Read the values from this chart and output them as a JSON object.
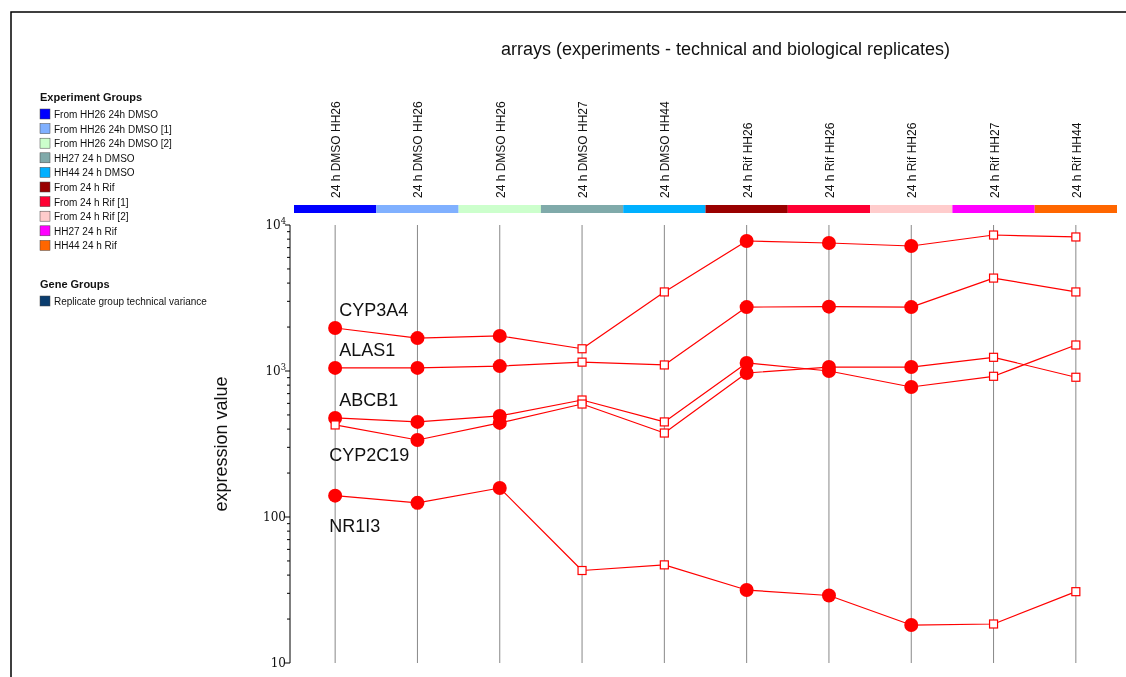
{
  "chart_data": {
    "type": "line",
    "xlabel": "arrays (experiments - technical and biological replicates)",
    "ylabel": "expression value",
    "annotations": [
      "Experiment Groups",
      "From HH26 24h DMSO",
      "From HH26 24h DMSO [1]",
      "From HH26 24h DMSO [2]",
      "HH27 24 h DMSO",
      "HH44 24 h DMSO",
      "From 24 h Rif",
      "From 24 h Rif [1]",
      "From 24 h Rif [2]",
      "HH27 24 h Rif",
      "HH44 24 h Rif",
      "Gene Groups",
      "Replicate group technical variance"
    ],
    "categories": [
      "24 h DMSO HH26",
      "24 h DMSO HH26",
      "24 h DMSO HH26",
      "24 h DMSO HH27",
      "24 h DMSO HH44",
      "24 h Rif HH26",
      "24 h Rif HH26",
      "24 h Rif HH26",
      "24 h Rif HH27",
      "24 h Rif HH44"
    ],
    "log": true,
    "grid": "x",
    "ylim": [
      10,
      10000
    ],
    "yticks": [
      {
        "value": 10,
        "label": "10"
      },
      {
        "value": 20,
        "label": null
      },
      {
        "value": 30,
        "label": null
      },
      {
        "value": 40,
        "label": null
      },
      {
        "value": 50,
        "label": null
      },
      {
        "value": 60,
        "label": null
      },
      {
        "value": 70,
        "label": null
      },
      {
        "value": 80,
        "label": null
      },
      {
        "value": 90,
        "label": null
      },
      {
        "value": 100,
        "label": "100"
      },
      {
        "value": 200,
        "label": null
      },
      {
        "value": 300,
        "label": null
      },
      {
        "value": 400,
        "label": null
      },
      {
        "value": 500,
        "label": null
      },
      {
        "value": 600,
        "label": null
      },
      {
        "value": 700,
        "label": null
      },
      {
        "value": 800,
        "label": null
      },
      {
        "value": 900,
        "label": null
      },
      {
        "value": 1000,
        "label": "10$^{3}$"
      },
      {
        "value": 2000,
        "label": null
      },
      {
        "value": 3000,
        "label": null
      },
      {
        "value": 4000,
        "label": null
      },
      {
        "value": 5000,
        "label": null
      },
      {
        "value": 6000,
        "label": null
      },
      {
        "value": 7000,
        "label": null
      },
      {
        "value": 8000,
        "label": null
      },
      {
        "value": 9000,
        "label": null
      },
      {
        "value": 10000,
        "label": "10$^{4}$"
      }
    ],
    "series": [
      {
        "name": "CYP3A4",
        "marker": "none",
        "color": "#ff0000",
        "values": [
          1970,
          1680,
          1740,
          1420,
          3480,
          7770,
          7530,
          7180,
          8540,
          8280
        ]
      },
      {
        "name": "ALAS1",
        "marker": "none",
        "color": "#ff0000",
        "values": [
          1050,
          1050,
          1080,
          1150,
          1100,
          2740,
          2760,
          2740,
          4330,
          3480
        ]
      },
      {
        "name": "ABCB1",
        "marker": "none",
        "color": "#ff0000",
        "values": [
          477,
          448,
          492,
          633,
          448,
          1135,
          1000,
          777,
          920,
          1507
        ]
      },
      {
        "name": "CYP2C19",
        "marker": "none",
        "color": "#ff0000",
        "values": [
          427,
          337,
          441,
          594,
          376,
          969,
          1064,
          1064,
          1241,
          906
        ]
      },
      {
        "name": "NR1I3",
        "marker": "none",
        "color": "#ff0000",
        "values": [
          140,
          125,
          158,
          43,
          47,
          31.6,
          29,
          18.2,
          18.5,
          30.8
        ]
      },
      {
        "type": "scatter",
        "marker": "circle",
        "color": "#ff0000",
        "values": [
          1970,
          1680,
          1740,
          null,
          null,
          7770,
          7530,
          7180,
          null,
          null
        ]
      },
      {
        "type": "scatter",
        "marker": "circle",
        "color": "#ff0000",
        "values": [
          1050,
          1050,
          1080,
          null,
          null,
          2740,
          2760,
          2740,
          null,
          null
        ]
      },
      {
        "type": "scatter",
        "marker": "circle",
        "color": "#ff0000",
        "values": [
          477,
          448,
          492,
          null,
          null,
          1135,
          1000,
          777,
          null,
          null
        ]
      },
      {
        "type": "scatter",
        "marker": "circle",
        "color": "#ff0000",
        "values": [
          null,
          337,
          441,
          null,
          null,
          969,
          1064,
          1064,
          null,
          null
        ]
      },
      {
        "type": "scatter",
        "marker": "circle",
        "color": "#ff0000",
        "values": [
          140,
          125,
          158,
          null,
          null,
          31.6,
          29,
          18.2,
          null,
          null
        ]
      },
      {
        "type": "scatter",
        "marker": "square",
        "color": "#ff0000",
        "values": [
          null,
          null,
          null,
          1420,
          3480,
          null,
          null,
          null,
          8540,
          8280
        ]
      },
      {
        "type": "scatter",
        "marker": "square",
        "color": "#ff0000",
        "values": [
          null,
          null,
          null,
          1150,
          1100,
          null,
          null,
          null,
          4330,
          3480
        ]
      },
      {
        "type": "scatter",
        "marker": "square",
        "color": "#ff0000",
        "values": [
          null,
          null,
          null,
          633,
          448,
          null,
          null,
          null,
          920,
          1507
        ]
      },
      {
        "type": "scatter",
        "marker": "square",
        "color": "#ff0000",
        "values": [
          427,
          null,
          null,
          594,
          376,
          null,
          null,
          null,
          1241,
          906
        ]
      },
      {
        "type": "scatter",
        "marker": "square",
        "color": "#ff0000",
        "values": [
          null,
          null,
          null,
          43,
          47,
          null,
          null,
          null,
          18.5,
          30.8
        ]
      }
    ]
  }
}
